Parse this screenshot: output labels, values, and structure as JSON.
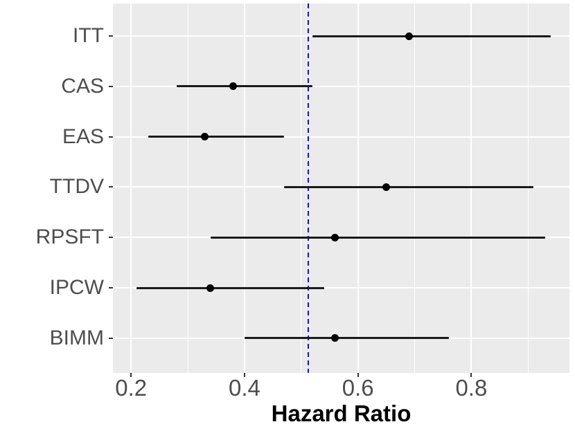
{
  "chart_data": {
    "type": "scatter",
    "subtype": "forest-plot",
    "title": "",
    "xlabel": "Hazard Ratio",
    "ylabel": "",
    "categories": [
      "ITT",
      "CAS",
      "EAS",
      "TTDV",
      "RPSFT",
      "IPCW",
      "BIMM"
    ],
    "series": [
      {
        "name": "hazard_ratio",
        "values": [
          0.69,
          0.38,
          0.33,
          0.65,
          0.56,
          0.34,
          0.56
        ]
      },
      {
        "name": "ci_lower",
        "values": [
          0.52,
          0.28,
          0.23,
          0.47,
          0.34,
          0.21,
          0.4
        ]
      },
      {
        "name": "ci_upper",
        "values": [
          0.94,
          0.52,
          0.47,
          0.91,
          0.93,
          0.54,
          0.76
        ]
      }
    ],
    "reference_line": 0.513,
    "x_ticks": [
      0.2,
      0.4,
      0.6,
      0.8
    ],
    "x_tick_labels": [
      "0.2",
      "0.4",
      "0.6",
      "0.8"
    ],
    "x_minor_ticks": [
      0.3,
      0.5,
      0.7,
      0.9
    ],
    "xlim": [
      0.168,
      0.973
    ],
    "grid": "major-white-on-gray",
    "legend": false,
    "colors": {
      "panel_bg": "#EBEBEB",
      "grid": "#FFFFFF",
      "point": "#000000",
      "error_bar": "#1A1A1A",
      "reference_line": "#0D0DF2",
      "axis_text": "#4D4D4D",
      "tick_mark": "#333333",
      "axis_title": "#000000"
    }
  }
}
